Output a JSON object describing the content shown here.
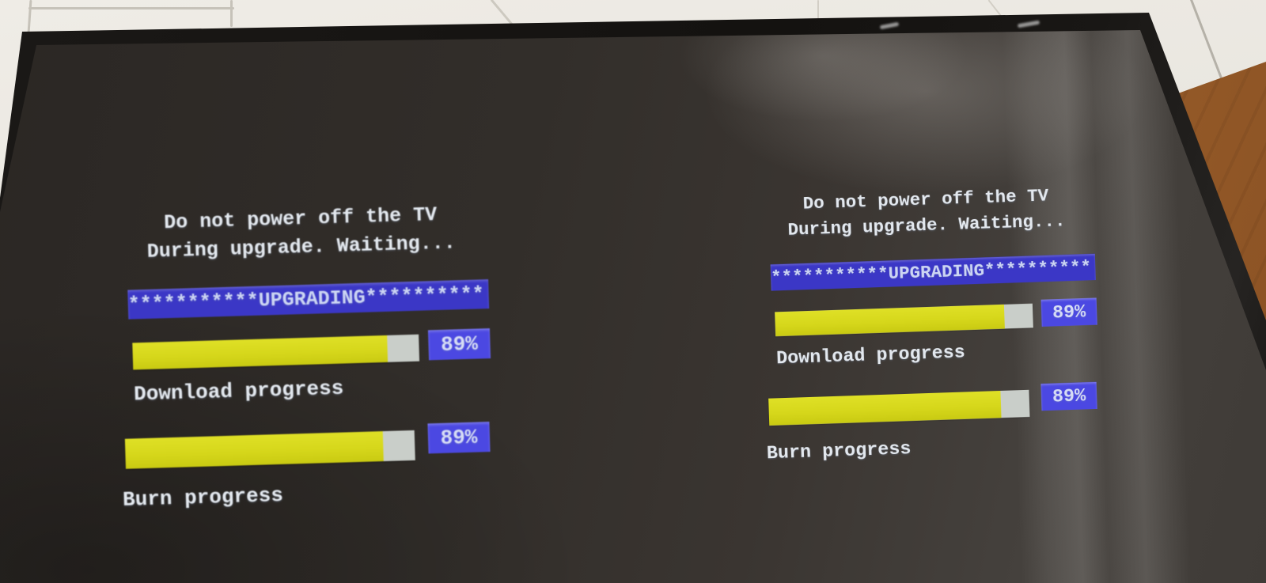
{
  "tv": {
    "panels": [
      {
        "warning_line1": "Do not power off the TV",
        "warning_line2": "During upgrade. Waiting...",
        "upgrading_banner": "***********UPGRADING**********",
        "download": {
          "label": "Download progress",
          "percent": 89,
          "percent_text": "89%"
        },
        "burn": {
          "label": "Burn progress",
          "percent": 89,
          "percent_text": "89%"
        }
      },
      {
        "warning_line1": "Do not power off the TV",
        "warning_line2": "During upgrade. Waiting...",
        "upgrading_banner": "***********UPGRADING**********",
        "download": {
          "label": "Download progress",
          "percent": 89,
          "percent_text": "89%"
        },
        "burn": {
          "label": "Burn progress",
          "percent": 89,
          "percent_text": "89%"
        }
      }
    ],
    "colors": {
      "banner_blue": "#3b37c6",
      "badge_blue": "#4b48e2",
      "progress_yellow": "#d6d71b",
      "progress_track_gray": "#c9cec9",
      "screen_text": "#e3e8ee",
      "banner_text": "#ccd5f3"
    }
  }
}
